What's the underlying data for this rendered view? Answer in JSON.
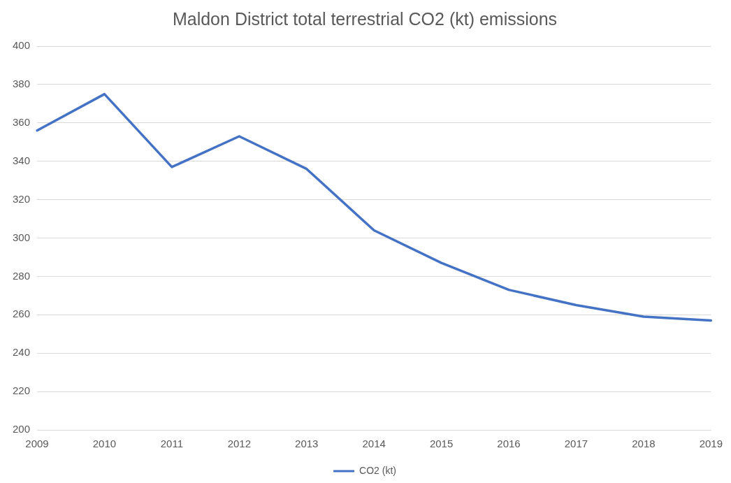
{
  "chart_data": {
    "type": "line",
    "title": "Maldon District total terrestrial CO2 (kt) emissions",
    "categories": [
      "2009",
      "2010",
      "2011",
      "2012",
      "2013",
      "2014",
      "2015",
      "2016",
      "2017",
      "2018",
      "2019"
    ],
    "series": [
      {
        "name": "CO2 (kt)",
        "color": "#4472c4",
        "values": [
          356,
          375,
          337,
          353,
          336,
          304,
          287,
          273,
          265,
          259,
          257
        ]
      }
    ],
    "ylim": [
      200,
      400
    ],
    "yticks": [
      200,
      220,
      240,
      260,
      280,
      300,
      320,
      340,
      360,
      380,
      400
    ],
    "grid": "y",
    "legend": "bottom",
    "marker": "none",
    "line_style": "solid"
  }
}
